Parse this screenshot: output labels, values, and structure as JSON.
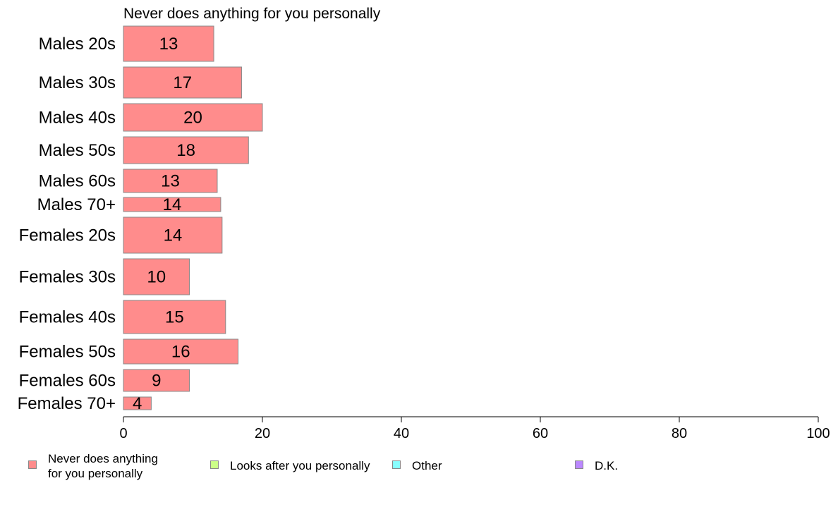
{
  "chart_data": {
    "type": "bar",
    "orientation": "horizontal",
    "title": "Never does anything for you personally",
    "categories": [
      "Males 20s",
      "Males 30s",
      "Males 40s",
      "Males 50s",
      "Males 60s",
      "Males 70+",
      "Females 20s",
      "Females 30s",
      "Females 40s",
      "Females 50s",
      "Females 60s",
      "Females 70+"
    ],
    "series": [
      {
        "name": "Never does anything\nfor you personally",
        "color": "#ff8c8c",
        "values": [
          13,
          17,
          20,
          18,
          13.5,
          14,
          14.2,
          9.5,
          14.7,
          16.5,
          9.5,
          4
        ],
        "labels": [
          "13",
          "17",
          "20",
          "18",
          "13",
          "14",
          "14",
          "10",
          "15",
          "16",
          "9",
          "4"
        ]
      }
    ],
    "xlim": [
      0,
      100
    ],
    "xticks": [
      "0",
      "20",
      "40",
      "60",
      "80",
      "100"
    ],
    "legend_position": "bottom",
    "grid": false
  },
  "legend": [
    {
      "label": "Never does anything\nfor you personally",
      "color": "#ff8c8c"
    },
    {
      "label": "Looks after you personally",
      "color": "#ccff88"
    },
    {
      "label": "Other",
      "color": "#88ffff"
    },
    {
      "label": "D.K.",
      "color": "#bb88ff"
    }
  ]
}
